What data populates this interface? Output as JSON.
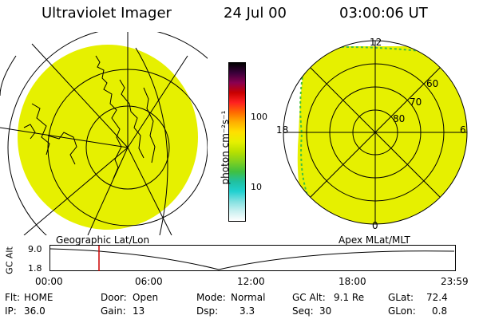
{
  "header": {
    "title": "Ultraviolet Imager",
    "date": "24 Jul 00",
    "time": "03:00:06 UT"
  },
  "colorbar": {
    "label": "photon cm⁻²s⁻¹",
    "ticks": [
      "100",
      "10"
    ],
    "colors": [
      "#000000",
      "#3a003a",
      "#8a0050",
      "#c80000",
      "#ff2020",
      "#ff6a00",
      "#ffb000",
      "#ffe000",
      "#e6f000",
      "#b8e000",
      "#80d020",
      "#40c040",
      "#20c0a0",
      "#20d0d0",
      "#80e0e0",
      "#c8f0f0",
      "#ffffff"
    ]
  },
  "left_map": {
    "caption": "Geographic Lat/Lon",
    "fill_color": "#e6f000"
  },
  "right_map": {
    "caption": "Apex MLat/MLT",
    "fill_color": "#e6f000",
    "mlt_labels": {
      "top": "12",
      "left": "18",
      "right": "6",
      "bottom": "0"
    },
    "lat_labels": [
      "60",
      "70",
      "80"
    ]
  },
  "altitude_plot": {
    "axis_label": "GC Alt",
    "y_ticks": [
      "9.0",
      "1.8"
    ],
    "x_ticks": [
      "00:00",
      "06:00",
      "12:00",
      "18:00",
      "23:59"
    ],
    "marker_color": "#cc0000"
  },
  "status": {
    "flt_label": "Flt:",
    "flt_value": "HOME",
    "ip_label": "IP:",
    "ip_value": "36.0",
    "door_label": "Door:",
    "door_value": "Open",
    "gain_label": "Gain:",
    "gain_value": "13",
    "mode_label": "Mode:",
    "mode_value": "Normal",
    "dsp_label": "Dsp:",
    "dsp_value": "3.3",
    "gcalt_label": "GC Alt:",
    "gcalt_value": "9.1 Re",
    "seq_label": "Seq:",
    "seq_value": "30",
    "glat_label": "GLat:",
    "glat_value": "72.4",
    "glon_label": "GLon:",
    "glon_value": "0.8"
  }
}
